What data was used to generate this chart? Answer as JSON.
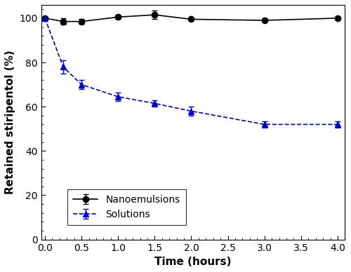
{
  "nano_x": [
    0.0,
    0.25,
    0.5,
    1.0,
    1.5,
    2.0,
    3.0,
    4.0
  ],
  "nano_y": [
    100.0,
    98.5,
    98.5,
    100.5,
    101.5,
    99.5,
    99.0,
    100.0
  ],
  "nano_err": [
    0.5,
    1.5,
    1.0,
    1.0,
    2.0,
    0.5,
    0.5,
    0.5
  ],
  "sol_x": [
    0.0,
    0.25,
    0.5,
    1.0,
    1.5,
    2.0,
    3.0,
    4.0
  ],
  "sol_y": [
    100.0,
    78.0,
    70.0,
    64.5,
    61.5,
    58.0,
    52.0,
    52.0
  ],
  "sol_err": [
    0.5,
    3.0,
    2.0,
    2.0,
    1.5,
    2.0,
    1.5,
    1.5
  ],
  "nano_color": "#000000",
  "sol_color": "#0000cc",
  "xlabel": "Time (hours)",
  "ylabel": "Retained stiripentol (%)",
  "xlim": [
    -0.05,
    4.1
  ],
  "ylim": [
    0,
    106
  ],
  "yticks": [
    0,
    20,
    40,
    60,
    80,
    100
  ],
  "xticks": [
    0.0,
    0.5,
    1.0,
    1.5,
    2.0,
    2.5,
    3.0,
    3.5,
    4.0
  ],
  "legend_nano": "Nanoemulsions",
  "legend_sol": "Solutions",
  "figsize": [
    5.0,
    3.88
  ],
  "dpi": 100
}
